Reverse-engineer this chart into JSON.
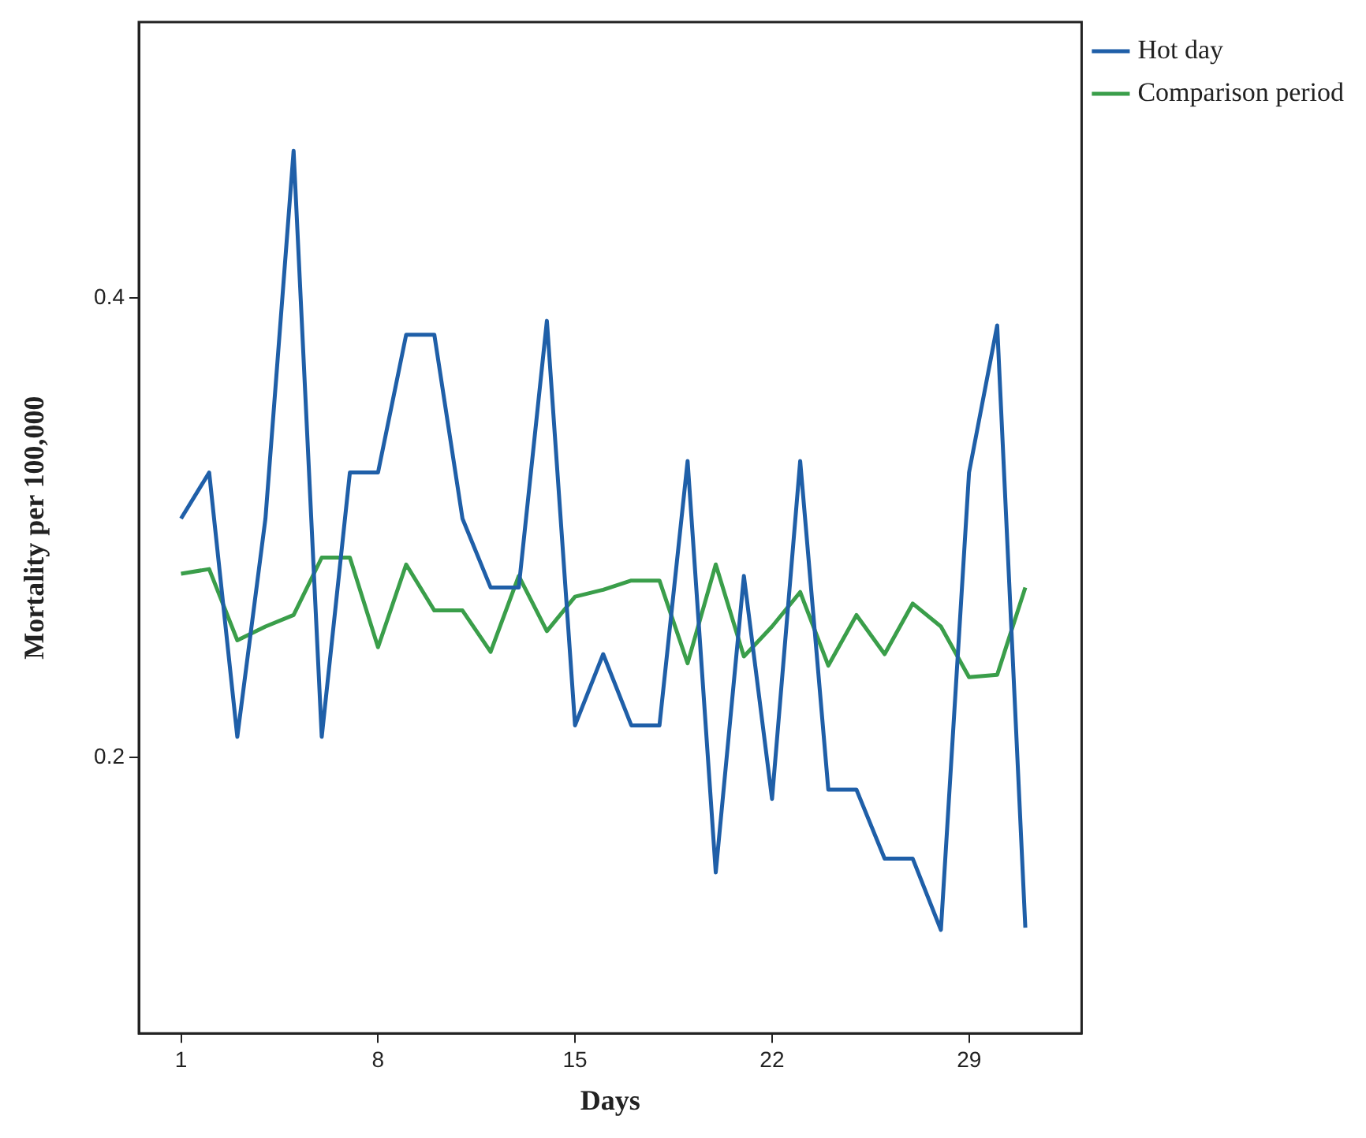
{
  "chart_data": {
    "type": "line",
    "xlabel": "Days",
    "ylabel": "Mortality per 100,000",
    "x": [
      1,
      2,
      3,
      4,
      5,
      6,
      7,
      8,
      9,
      10,
      11,
      12,
      13,
      14,
      15,
      16,
      17,
      18,
      19,
      20,
      21,
      22,
      23,
      24,
      25,
      26,
      27,
      28,
      29,
      30,
      31
    ],
    "series": [
      {
        "name": "Hot day",
        "color": "#1f5fa8",
        "values": [
          0.304,
          0.324,
          0.209,
          0.304,
          0.464,
          0.209,
          0.324,
          0.324,
          0.384,
          0.384,
          0.304,
          0.274,
          0.274,
          0.39,
          0.214,
          0.245,
          0.214,
          0.214,
          0.329,
          0.15,
          0.279,
          0.182,
          0.329,
          0.186,
          0.186,
          0.156,
          0.156,
          0.125,
          0.324,
          0.388,
          0.126
        ]
      },
      {
        "name": "Comparison period",
        "color": "#3a9e4a",
        "values": [
          0.28,
          0.282,
          0.251,
          0.257,
          0.262,
          0.287,
          0.287,
          0.248,
          0.284,
          0.264,
          0.264,
          0.246,
          0.279,
          0.255,
          0.27,
          0.273,
          0.277,
          0.277,
          0.241,
          0.284,
          0.244,
          0.257,
          0.272,
          0.24,
          0.262,
          0.245,
          0.267,
          0.257,
          0.235,
          0.236,
          0.274
        ]
      }
    ],
    "xlim": [
      -0.5,
      33
    ],
    "xticks": [
      1,
      8,
      15,
      22,
      29
    ],
    "ylim": [
      0.08,
      0.52
    ],
    "yticks": [
      0.2,
      0.4
    ],
    "grid": false,
    "legend": "top right",
    "marker": "none",
    "line_style": "solid"
  }
}
